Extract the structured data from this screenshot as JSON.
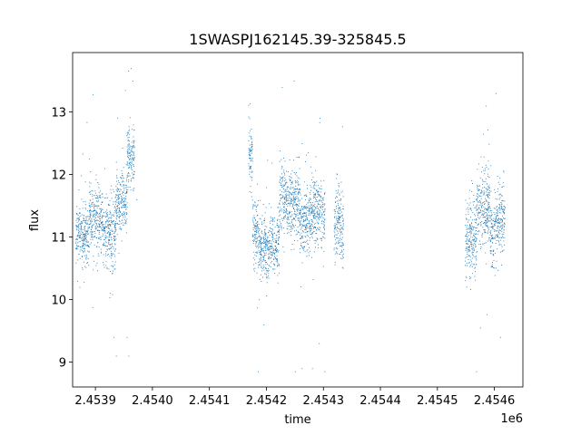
{
  "chart_data": {
    "type": "scatter",
    "title": "1SWASPJ162145.39-325845.5",
    "xlabel": "time",
    "ylabel": "flux",
    "x_offset_text": "1e6",
    "xlim": [
      2.45386,
      2.45465
    ],
    "ylim": [
      8.6,
      13.95
    ],
    "x_ticks": [
      {
        "value": 2.4539,
        "label": "2.4539"
      },
      {
        "value": 2.454,
        "label": "2.4540"
      },
      {
        "value": 2.4541,
        "label": "2.4541"
      },
      {
        "value": 2.4542,
        "label": "2.4542"
      },
      {
        "value": 2.4543,
        "label": "2.4543"
      },
      {
        "value": 2.4544,
        "label": "2.4544"
      },
      {
        "value": 2.4545,
        "label": "2.4545"
      },
      {
        "value": 2.4546,
        "label": "2.4546"
      }
    ],
    "y_ticks": [
      {
        "value": 9,
        "label": "9"
      },
      {
        "value": 10,
        "label": "10"
      },
      {
        "value": 11,
        "label": "11"
      },
      {
        "value": 12,
        "label": "12"
      },
      {
        "value": 13,
        "label": "13"
      }
    ],
    "grid": false,
    "marker_color": "#1f77b4",
    "clusters": [
      {
        "x": [
          2.453865,
          2.453888
        ],
        "y_center": 11.05,
        "spread": 0.22
      },
      {
        "x": [
          2.453888,
          2.453912
        ],
        "y_center": 11.3,
        "spread": 0.25
      },
      {
        "x": [
          2.453912,
          2.453935
        ],
        "y_center": 11.05,
        "spread": 0.28
      },
      {
        "x": [
          2.453935,
          2.453955
        ],
        "y_center": 11.55,
        "spread": 0.25
      },
      {
        "x": [
          2.453955,
          2.453968
        ],
        "y_center": 12.3,
        "spread": 0.25
      },
      {
        "x": [
          2.454168,
          2.454175
        ],
        "y_center": 12.3,
        "spread": 0.25
      },
      {
        "x": [
          2.454175,
          2.454185
        ],
        "y_center": 11.1,
        "spread": 0.25
      },
      {
        "x": [
          2.454185,
          2.454222
        ],
        "y_center": 10.85,
        "spread": 0.25
      },
      {
        "x": [
          2.454222,
          2.454258
        ],
        "y_center": 11.55,
        "spread": 0.28
      },
      {
        "x": [
          2.454258,
          2.454278
        ],
        "y_center": 11.3,
        "spread": 0.25
      },
      {
        "x": [
          2.454278,
          2.454302
        ],
        "y_center": 11.4,
        "spread": 0.28
      },
      {
        "x": [
          2.454318,
          2.454335
        ],
        "y_center": 11.2,
        "spread": 0.3
      },
      {
        "x": [
          2.454548,
          2.454568
        ],
        "y_center": 11.0,
        "spread": 0.3
      },
      {
        "x": [
          2.454568,
          2.454592
        ],
        "y_center": 11.45,
        "spread": 0.3
      },
      {
        "x": [
          2.454592,
          2.454608
        ],
        "y_center": 11.15,
        "spread": 0.3
      },
      {
        "x": [
          2.454608,
          2.454618
        ],
        "y_center": 11.3,
        "spread": 0.3
      }
    ],
    "outliers": [
      [
        2.453872,
        10.2
      ],
      [
        2.453895,
        13.28
      ],
      [
        2.453916,
        12.1
      ],
      [
        2.453922,
        10.9
      ],
      [
        2.453932,
        9.4
      ],
      [
        2.453936,
        9.1
      ],
      [
        2.453952,
        13.35
      ],
      [
        2.453955,
        9.4
      ],
      [
        2.453962,
        13.7
      ],
      [
        2.453965,
        13.5
      ],
      [
        2.453958,
        9.1
      ],
      [
        2.453972,
        11.6
      ],
      [
        2.45417,
        12.9
      ],
      [
        2.454227,
        13.4
      ],
      [
        2.454185,
        8.85
      ],
      [
        2.454195,
        9.6
      ],
      [
        2.45425,
        8.85
      ],
      [
        2.454262,
        8.9
      ],
      [
        2.45428,
        8.9
      ],
      [
        2.454302,
        8.85
      ],
      [
        2.454292,
        9.3
      ],
      [
        2.454262,
        12.5
      ],
      [
        2.454568,
        8.85
      ],
      [
        2.454602,
        13.3
      ],
      [
        2.454585,
        13.1
      ],
      [
        2.454575,
        9.55
      ],
      [
        2.45458,
        12.65
      ],
      [
        2.45461,
        9.4
      ]
    ]
  }
}
